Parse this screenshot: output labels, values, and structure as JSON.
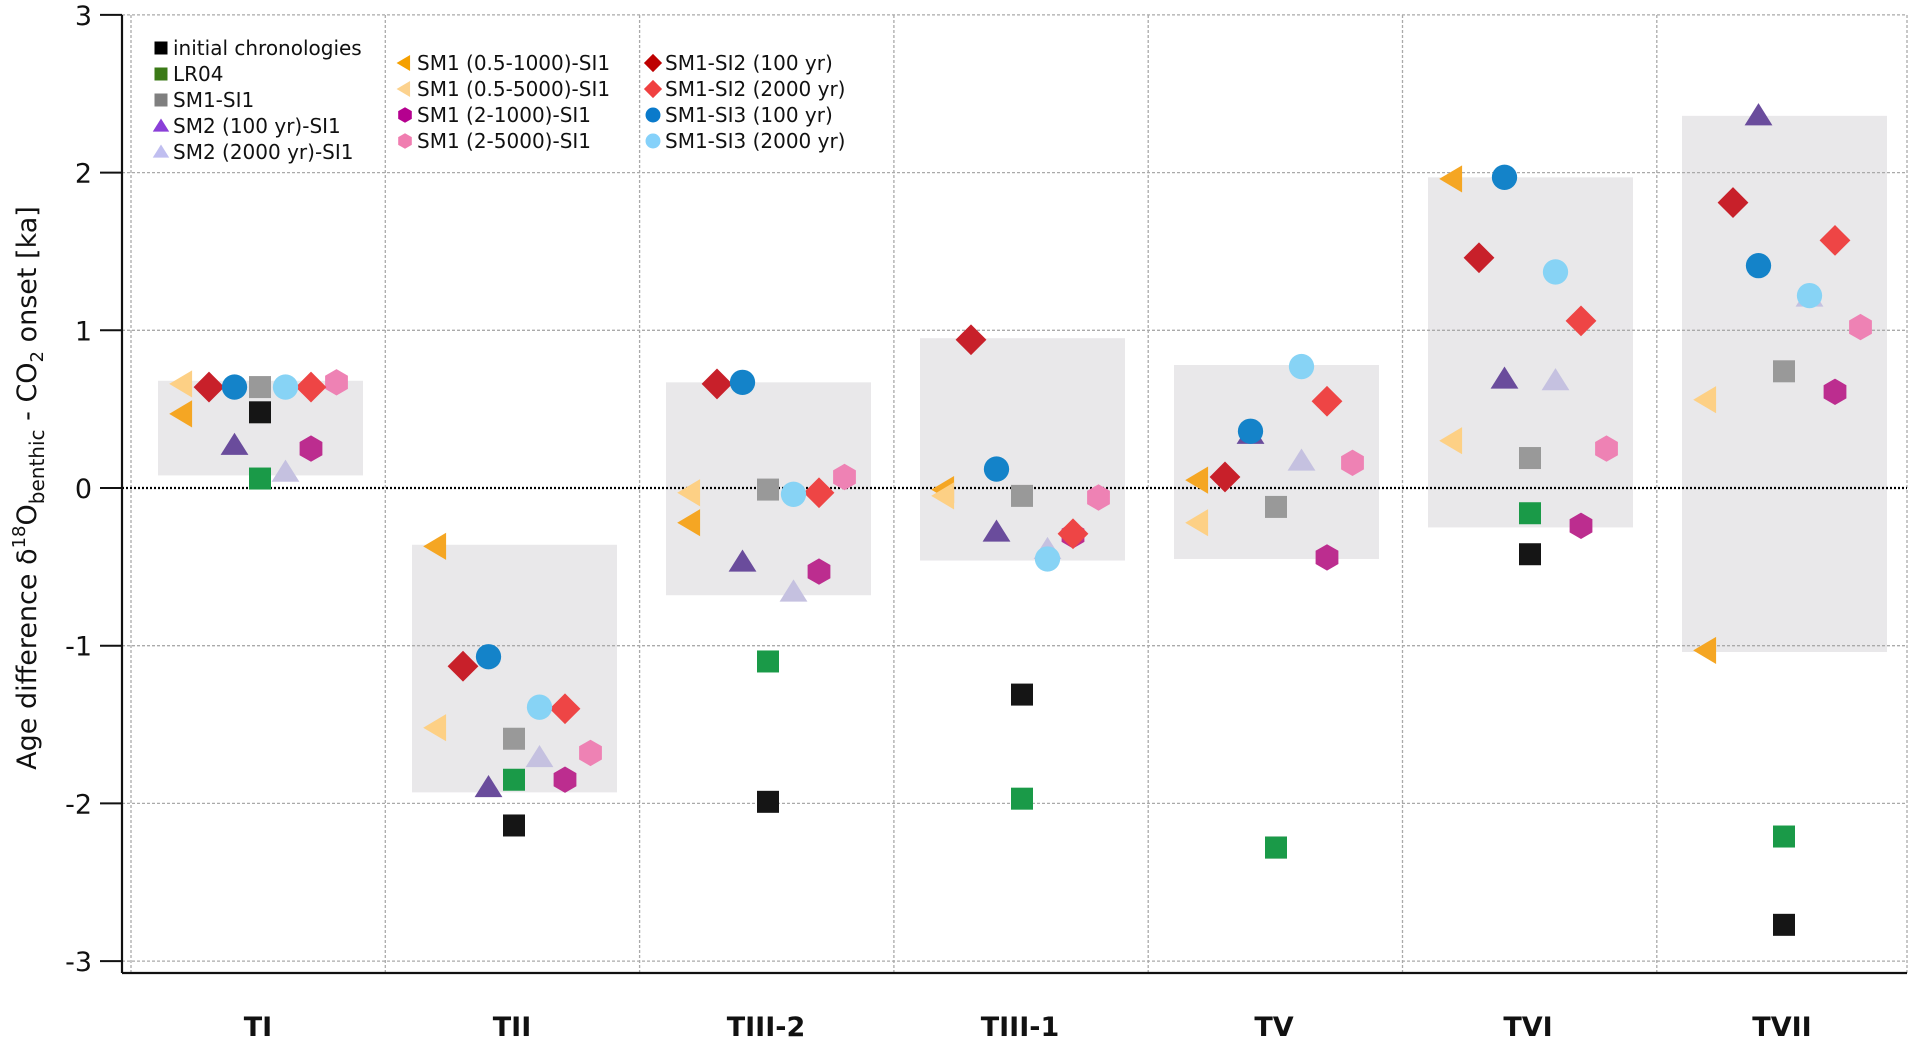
{
  "chart_data": {
    "type": "scatter",
    "title": "",
    "xlabel": "",
    "ylabel": {
      "prefix": "Age difference δ",
      "sup": "18",
      "mid": "O",
      "sub1": "benthic",
      "mid2": " - CO",
      "sub2": "2",
      "suffix": " onset [ka]"
    },
    "ylim": [
      -3,
      3
    ],
    "yticks": [
      "3",
      "2",
      "1",
      "0",
      "-1",
      "-2",
      "-3"
    ],
    "ytick_values": [
      3,
      2,
      1,
      0,
      -1,
      -2,
      -3
    ],
    "grid": true,
    "zero_line": true,
    "legend_placement": "top-left",
    "categories": [
      "TI",
      "TII",
      "TIII-2",
      "TIII-1",
      "TV",
      "TVI",
      "TVII"
    ],
    "ranges": [
      {
        "category": "TI",
        "min": 0.08,
        "max": 0.68
      },
      {
        "category": "TII",
        "min": -1.93,
        "max": -0.36
      },
      {
        "category": "TIII-2",
        "min": -0.68,
        "max": 0.67
      },
      {
        "category": "TIII-1",
        "min": -0.46,
        "max": 0.95
      },
      {
        "category": "TV",
        "min": -0.45,
        "max": 0.78
      },
      {
        "category": "TVI",
        "min": -0.25,
        "max": 1.97
      },
      {
        "category": "TVII",
        "min": -1.04,
        "max": 2.36
      }
    ],
    "series": [
      {
        "name": "initial chronologies",
        "marker": "square",
        "color": "#151515",
        "legend_color": "#000000",
        "slot": 3,
        "values": [
          0.48,
          -2.14,
          -1.99,
          -1.31,
          -2.28,
          -0.42,
          -2.77
        ]
      },
      {
        "name": "LR04",
        "marker": "square",
        "color": "#1A9A48",
        "legend_color": "#3B7A17",
        "slot": 3,
        "values": [
          0.06,
          -1.85,
          -1.1,
          -1.97,
          -2.28,
          -0.16,
          -2.21
        ]
      },
      {
        "name": "SM1-SI1",
        "marker": "square",
        "color": "#999999",
        "legend_color": "#7F7F7F",
        "slot": 3,
        "values": [
          0.64,
          -1.59,
          -0.01,
          -0.05,
          -0.12,
          0.19,
          0.74
        ]
      },
      {
        "name": "SM2 (100 yr)-SI1",
        "marker": "triangle-up",
        "color": "#6A4C9C",
        "legend_color": "#8A3FD8",
        "slot": 2,
        "values": [
          0.27,
          -1.9,
          -0.47,
          -0.28,
          0.34,
          0.69,
          2.36
        ]
      },
      {
        "name": "SM2 (2000 yr)-SI1",
        "marker": "triangle-up",
        "color": "#C5C1E0",
        "legend_color": "#C0BEF0",
        "slot": 4,
        "values": [
          0.1,
          -1.71,
          -0.66,
          -0.39,
          0.17,
          0.68,
          1.21
        ]
      },
      {
        "name": "SM1 (0.5-1000)-SI1",
        "marker": "triangle-left",
        "color": "#F5A623",
        "legend_color": "#F5A000",
        "slot": 0,
        "values": [
          0.47,
          -0.37,
          -0.22,
          -0.01,
          0.05,
          1.96,
          -1.03
        ]
      },
      {
        "name": "SM1 (0.5-5000)-SI1",
        "marker": "triangle-left",
        "color": "#FDD085",
        "legend_color": "#FCD28E",
        "slot": 0,
        "values": [
          0.66,
          -1.52,
          -0.03,
          -0.05,
          -0.22,
          0.3,
          0.56
        ]
      },
      {
        "name": "SM1 (2-1000)-SI1",
        "marker": "hexagon",
        "color": "#BC2D8F",
        "legend_color": "#B5008F",
        "slot": 5,
        "values": [
          0.25,
          -1.85,
          -0.53,
          -0.3,
          -0.44,
          -0.24,
          0.61
        ]
      },
      {
        "name": "SM1 (2-5000)-SI1",
        "marker": "hexagon",
        "color": "#EE82B4",
        "legend_color": "#F07DB0",
        "slot": 6,
        "values": [
          0.67,
          -1.68,
          0.07,
          -0.06,
          0.16,
          0.25,
          1.02
        ]
      },
      {
        "name": "SM1-SI2 (100 yr)",
        "marker": "diamond",
        "color": "#C8202A",
        "legend_color": "#BE0000",
        "slot": 1,
        "values": [
          0.64,
          -1.13,
          0.66,
          0.94,
          0.07,
          1.46,
          1.81
        ]
      },
      {
        "name": "SM1-SI2 (2000 yr)",
        "marker": "diamond",
        "color": "#EE4545",
        "legend_color": "#F04040",
        "slot": 5,
        "values": [
          0.64,
          -1.4,
          -0.03,
          -0.29,
          0.55,
          1.06,
          1.57
        ]
      },
      {
        "name": "SM1-SI3 (100 yr)",
        "marker": "circle",
        "color": "#1483C9",
        "legend_color": "#0A7ACB",
        "slot": 2,
        "values": [
          0.64,
          -1.07,
          0.67,
          0.12,
          0.36,
          1.97,
          1.41
        ]
      },
      {
        "name": "SM1-SI3 (2000 yr)",
        "marker": "circle",
        "color": "#87D3F5",
        "legend_color": "#85D1FA",
        "slot": 4,
        "values": [
          0.64,
          -1.39,
          -0.04,
          -0.45,
          0.77,
          1.37,
          1.22
        ]
      }
    ],
    "legend_columns": [
      [
        "initial chronologies",
        "LR04",
        "SM1-SI1",
        "SM2 (100 yr)-SI1",
        "SM2 (2000 yr)-SI1"
      ],
      [
        "SM1 (0.5-1000)-SI1",
        "SM1 (0.5-5000)-SI1",
        "SM1 (2-1000)-SI1",
        "SM1 (2-5000)-SI1"
      ],
      [
        "SM1-SI2 (100 yr)",
        "SM1-SI2 (2000 yr)",
        "SM1-SI3 (100 yr)",
        "SM1-SI3 (2000 yr)"
      ]
    ],
    "colors": {
      "range_box": "#E9E8EA",
      "grid": "#AAAAAA",
      "axis": "#111111"
    }
  }
}
